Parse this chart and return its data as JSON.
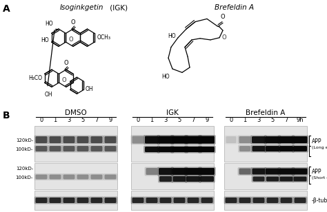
{
  "panel_a_label": "A",
  "panel_b_label": "B",
  "igk_italic": "Isoginkgetin",
  "igk_paren": " (IGK)",
  "bfa_italic": "Brefeldin A",
  "groups": [
    "DMSO",
    "IGK",
    "Brefeldin A"
  ],
  "timepoints": [
    "0",
    "1",
    "3",
    "5",
    "7",
    "9"
  ],
  "bg_gray": "#e4e4e4",
  "band_dark": "#101010",
  "band_mid": "#505050",
  "band_light": "#909090",
  "band_vlight": "#bbbbbb"
}
